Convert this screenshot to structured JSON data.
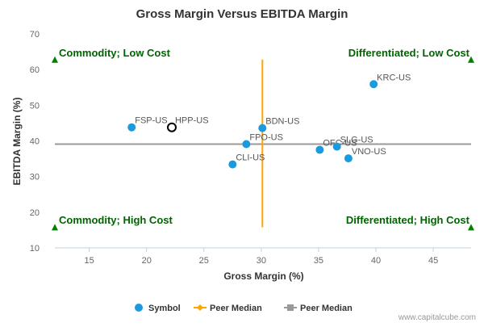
{
  "chart_data": {
    "type": "scatter",
    "title": "Gross Margin Versus EBITDA Margin",
    "xlabel": "Gross Margin (%)",
    "ylabel": "EBITDA Margin (%)",
    "xlim": [
      12,
      48.3
    ],
    "ylim": [
      10,
      70
    ],
    "x_ticks": [
      15,
      20,
      25,
      30,
      35,
      40,
      45
    ],
    "y_ticks": [
      10,
      20,
      30,
      40,
      50,
      60,
      70
    ],
    "grid": false,
    "points": [
      {
        "label": "FSP-US",
        "x": 18.7,
        "y": 43.8,
        "style": "symbol"
      },
      {
        "label": "HPP-US",
        "x": 22.2,
        "y": 43.8,
        "style": "highlight"
      },
      {
        "label": "BDN-US",
        "x": 30.1,
        "y": 43.6,
        "style": "symbol"
      },
      {
        "label": "FPO-US",
        "x": 28.7,
        "y": 39.1,
        "style": "symbol"
      },
      {
        "label": "CLI-US",
        "x": 27.5,
        "y": 33.4,
        "style": "symbol"
      },
      {
        "label": "OFC-US",
        "x": 35.1,
        "y": 37.5,
        "style": "symbol"
      },
      {
        "label": "SLG-US",
        "x": 36.6,
        "y": 38.4,
        "style": "symbol"
      },
      {
        "label": "VNO-US",
        "x": 37.6,
        "y": 35.1,
        "style": "symbol"
      },
      {
        "label": "KRC-US",
        "x": 39.8,
        "y": 55.9,
        "style": "symbol"
      }
    ],
    "peer_median_x": {
      "value": 30.1,
      "y_range": [
        15.8,
        62.8
      ],
      "color": "#ffa500"
    },
    "peer_median_y": {
      "value": 39.1,
      "color": "#999999"
    },
    "quadrants": [
      {
        "label": "Commodity; Low Cost",
        "corner": "top-left",
        "marker_x": 12,
        "marker_y": 62.8
      },
      {
        "label": "Differentiated; Low Cost",
        "corner": "top-right",
        "marker_x": 48.3,
        "marker_y": 62.8
      },
      {
        "label": "Commodity; High Cost",
        "corner": "bottom-left",
        "marker_x": 12,
        "marker_y": 15.8
      },
      {
        "label": "Differentiated; High Cost",
        "corner": "bottom-right",
        "marker_x": 48.3,
        "marker_y": 15.8
      }
    ],
    "legend": {
      "placement": "bottom-center",
      "items": [
        {
          "label": "Symbol",
          "type": "circle",
          "color": "#1a9be0"
        },
        {
          "label": "Peer Median",
          "type": "line-diamond",
          "color": "#ffa500"
        },
        {
          "label": "Peer Median",
          "type": "line-square",
          "color": "#999999"
        }
      ]
    },
    "colors": {
      "symbol": "#1a9be0",
      "quadrant_text": "#006400",
      "quadrant_marker": "#008000"
    }
  },
  "watermark": "www.capitalcube.com"
}
